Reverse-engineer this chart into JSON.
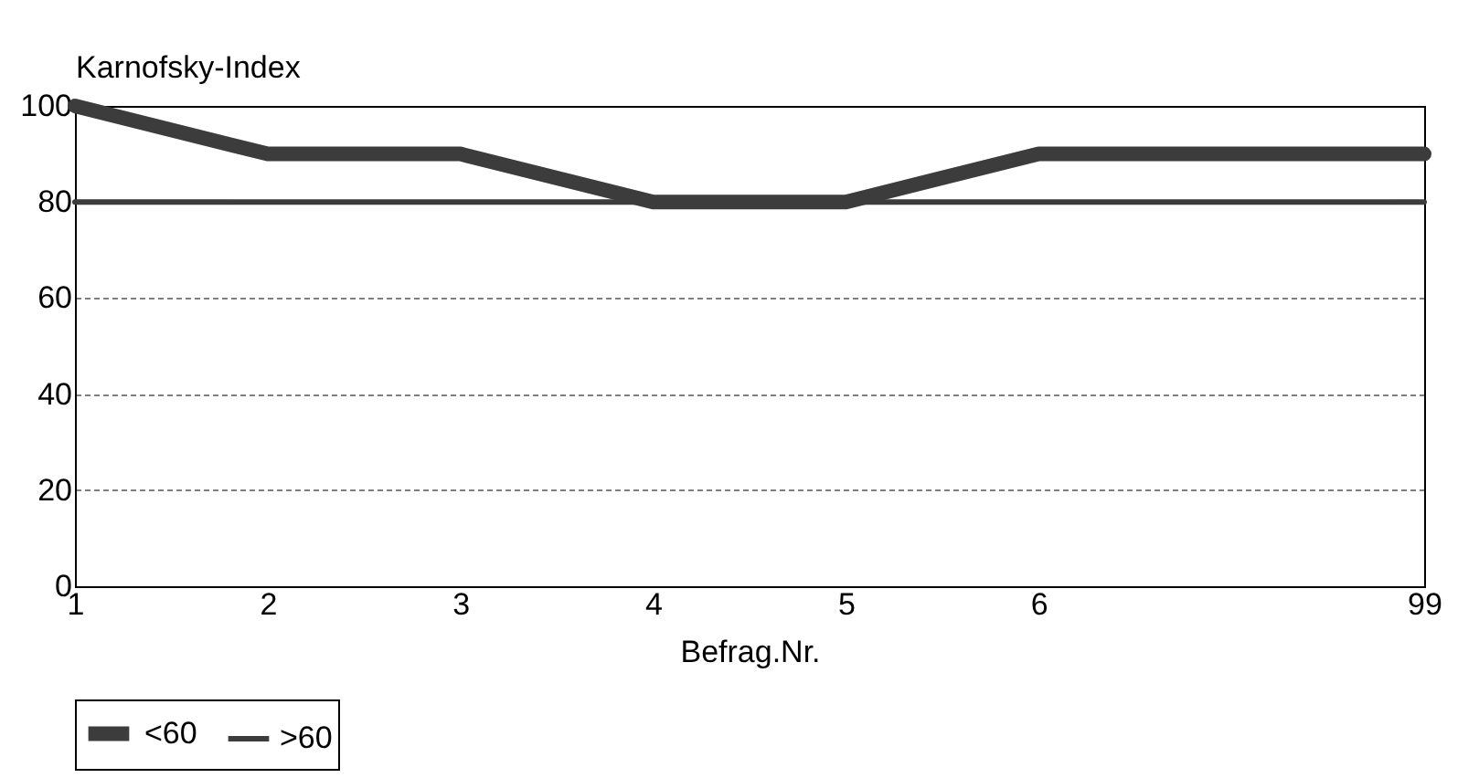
{
  "chart_data": {
    "type": "line",
    "xlabel": "Befrag.Nr.",
    "ylabel": "Karnofsky-Index",
    "categories": [
      "1",
      "2",
      "3",
      "4",
      "5",
      "6",
      null,
      "99"
    ],
    "series": [
      {
        "name": "<60",
        "color": "#3c3c3c",
        "values": [
          100,
          90,
          90,
          80,
          80,
          90,
          90,
          90
        ]
      },
      {
        "name": ">60",
        "color": "#3c3c3c",
        "values": [
          80,
          80,
          80,
          80,
          80,
          80,
          80,
          80
        ]
      }
    ],
    "ylim": [
      0,
      100
    ],
    "yticks": [
      0,
      20,
      40,
      60,
      80,
      100
    ],
    "grid": "y",
    "legend": "bottom",
    "marker": "none",
    "line_style": "solid"
  }
}
